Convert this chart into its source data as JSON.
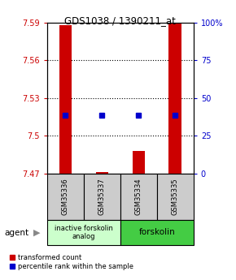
{
  "title": "GDS1038 / 1390211_at",
  "samples": [
    "GSM35336",
    "GSM35337",
    "GSM35334",
    "GSM35335"
  ],
  "red_values": [
    7.588,
    7.471,
    7.488,
    7.592
  ],
  "blue_y": [
    7.516,
    7.516,
    7.516,
    7.516
  ],
  "ylim_left": [
    7.47,
    7.59
  ],
  "ylim_right": [
    0,
    100
  ],
  "yticks_left": [
    7.47,
    7.5,
    7.53,
    7.56,
    7.59
  ],
  "yticks_right": [
    0,
    25,
    50,
    75,
    100
  ],
  "ytick_labels_left": [
    "7.47",
    "7.5",
    "7.53",
    "7.56",
    "7.59"
  ],
  "ytick_labels_right": [
    "0",
    "25",
    "50",
    "75",
    "100%"
  ],
  "group1_label": "inactive forskolin\nanalog",
  "group2_label": "forskolin",
  "agent_label": "agent",
  "legend1": "transformed count",
  "legend2": "percentile rank within the sample",
  "bar_width": 0.35,
  "red_color": "#cc0000",
  "blue_color": "#0000cc",
  "group1_color": "#ccffcc",
  "group2_color": "#44cc44",
  "sample_box_color": "#cccccc",
  "grid_lines": [
    7.5,
    7.53,
    7.56
  ]
}
